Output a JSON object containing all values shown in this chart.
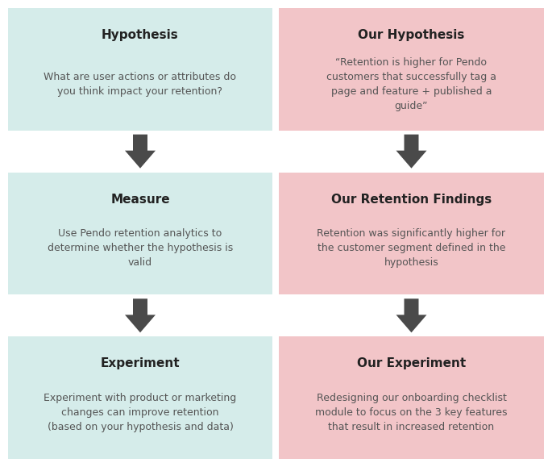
{
  "bg_color": "#ffffff",
  "left_box_color": "#d5ecea",
  "right_box_color": "#f2c5c8",
  "arrow_color": "#4a4a4a",
  "text_color": "#555555",
  "title_color": "#222222",
  "boxes": [
    {
      "col": 0,
      "row": 0,
      "title": "Hypothesis",
      "body": "What are user actions or attributes do\nyou think impact your retention?"
    },
    {
      "col": 1,
      "row": 0,
      "title": "Our Hypothesis",
      "body": "“Retention is higher for Pendo\ncustomers that successfully tag a\npage and feature + published a\nguide”"
    },
    {
      "col": 0,
      "row": 1,
      "title": "Measure",
      "body": "Use Pendo retention analytics to\ndetermine whether the hypothesis is\nvalid"
    },
    {
      "col": 1,
      "row": 1,
      "title": "Our Retention Findings",
      "body": "Retention was significantly higher for\nthe customer segment defined in the\nhypothesis"
    },
    {
      "col": 0,
      "row": 2,
      "title": "Experiment",
      "body": "Experiment with product or marketing\nchanges can improve retention\n(based on your hypothesis and data)"
    },
    {
      "col": 1,
      "row": 2,
      "title": "Our Experiment",
      "body": "Redesigning our onboarding checklist\nmodule to focus on the 3 key features\nthat result in increased retention"
    }
  ],
  "figsize": [
    6.85,
    5.79
  ],
  "dpi": 100
}
